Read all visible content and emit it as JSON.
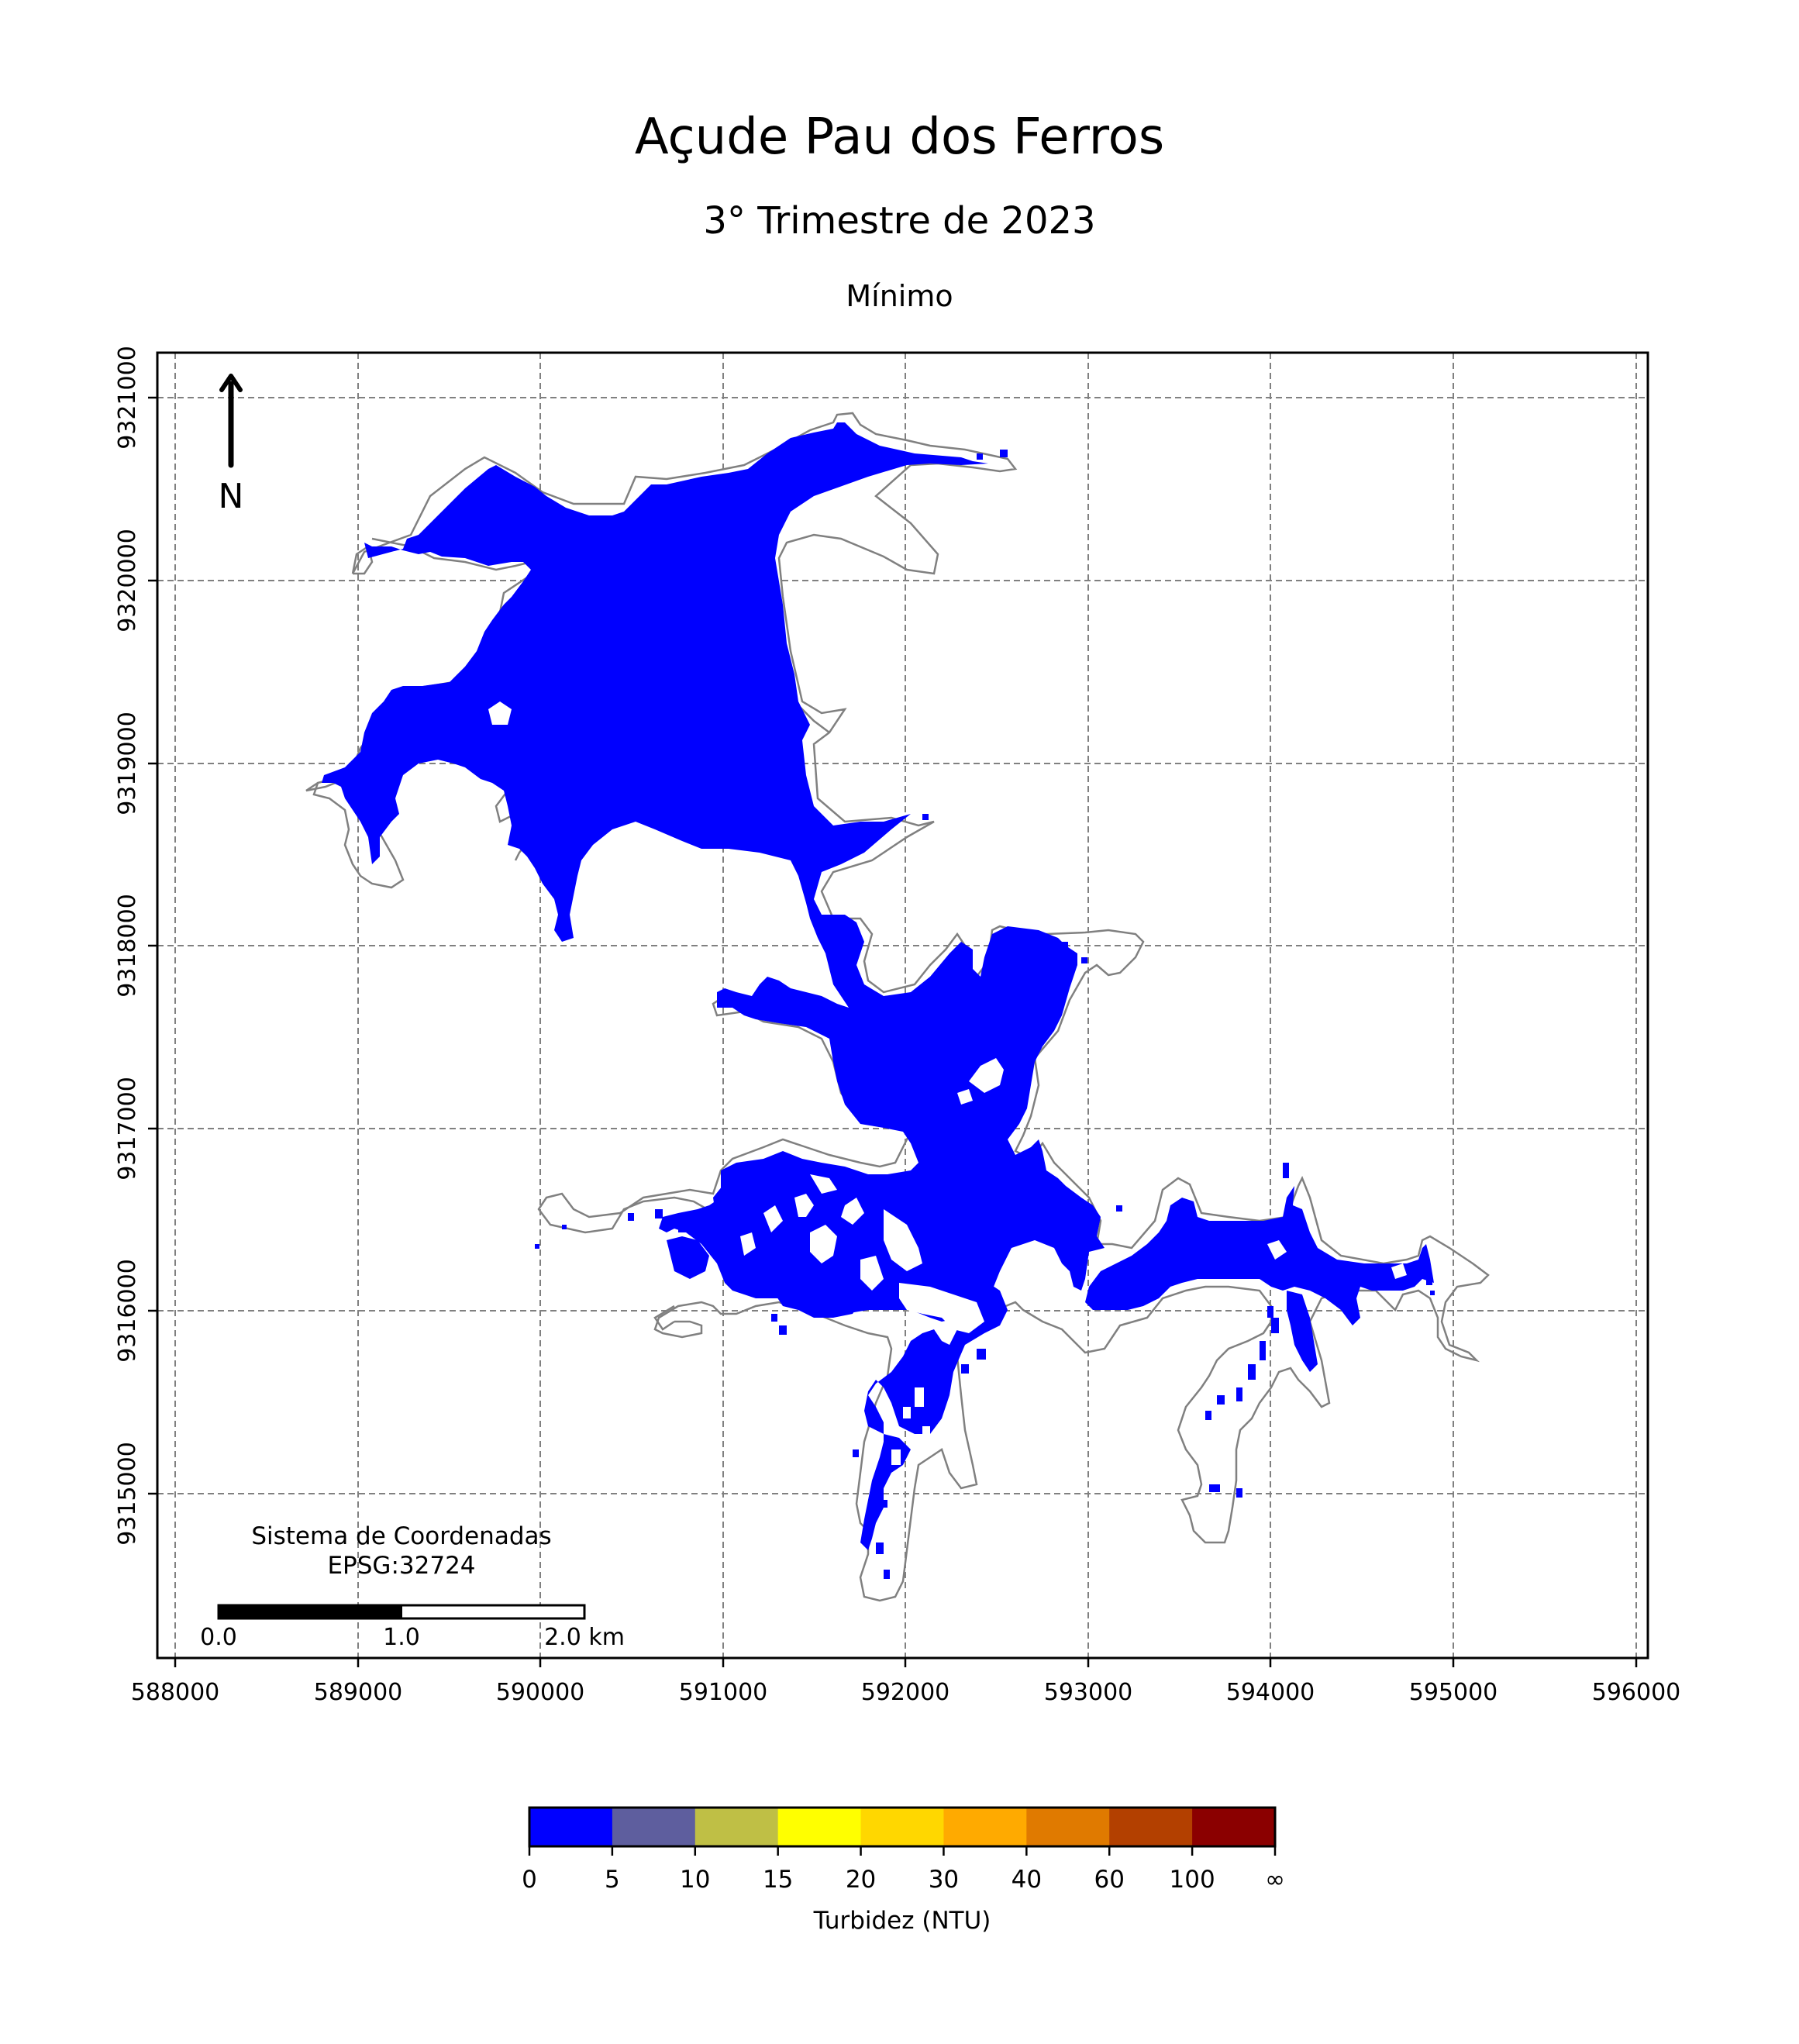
{
  "title": "Açude Pau dos Ferros",
  "subtitle": "3° Trimestre de 2023",
  "statistic": "Mínimo",
  "map": {
    "x_ticks": [
      "588000",
      "589000",
      "590000",
      "591000",
      "592000",
      "593000",
      "594000",
      "595000",
      "596000"
    ],
    "y_ticks": [
      "9315000",
      "9316000",
      "9317000",
      "9318000",
      "9319000",
      "9320000",
      "9321000"
    ],
    "north_label": "N",
    "crs_line1": "Sistema de Coordenadas",
    "crs_line2": "EPSG:32724",
    "scalebar_labels": [
      "0.0",
      "1.0",
      "2.0 km"
    ],
    "water_color": "#0000ff",
    "outline_color": "#808080"
  },
  "colorbar": {
    "label": "Turbidez (NTU)",
    "ticks": [
      "0",
      "5",
      "10",
      "15",
      "20",
      "30",
      "40",
      "60",
      "100",
      "∞"
    ],
    "colors": [
      "#0000ff",
      "#5e5e9e",
      "#bfbf45",
      "#ffff00",
      "#ffd700",
      "#ffaa00",
      "#e07a00",
      "#b34000",
      "#8b0000"
    ]
  }
}
